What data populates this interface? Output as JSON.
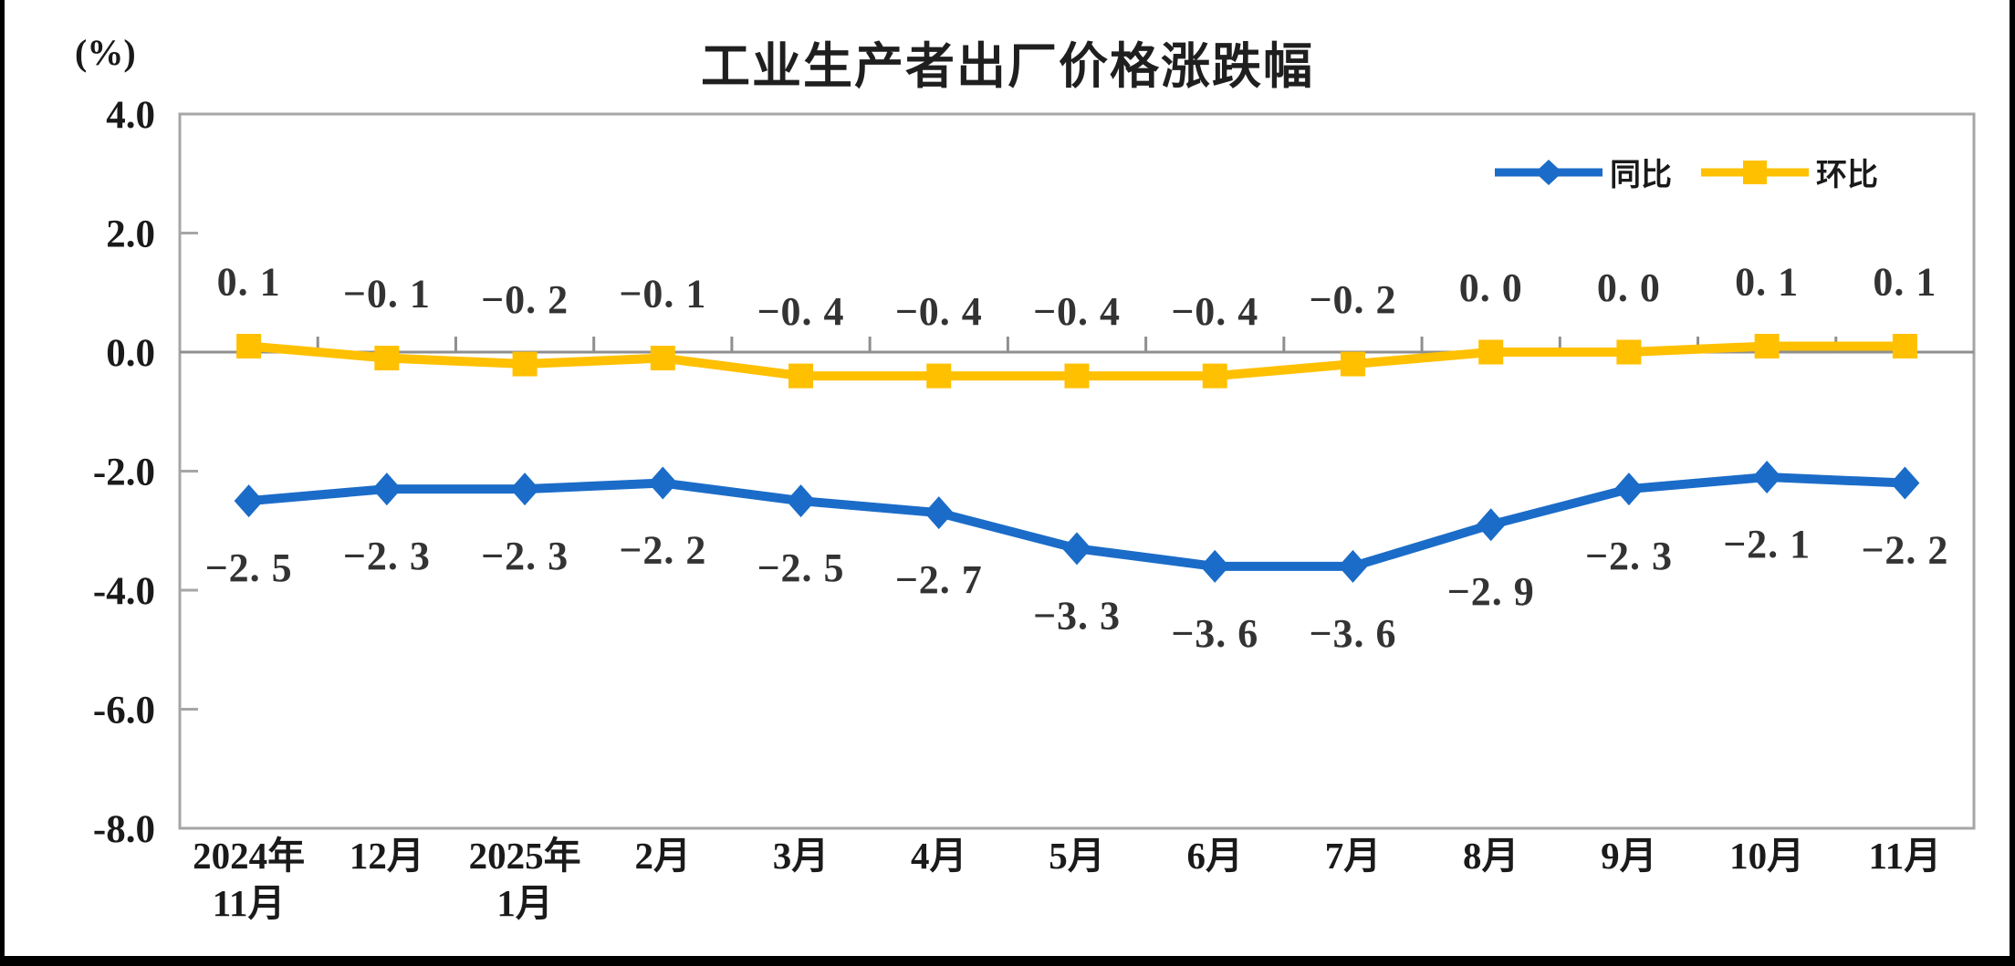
{
  "page": {
    "background": "#ffffff",
    "edge_bar_color": "#000000"
  },
  "chart_data": {
    "type": "line",
    "title": "工业生产者出厂价格涨跌幅",
    "unit_label": "(%)",
    "categories": [
      [
        "2024年",
        "11月"
      ],
      [
        "12月"
      ],
      [
        "2025年",
        "1月"
      ],
      [
        "2月"
      ],
      [
        "3月"
      ],
      [
        "4月"
      ],
      [
        "5月"
      ],
      [
        "6月"
      ],
      [
        "7月"
      ],
      [
        "8月"
      ],
      [
        "9月"
      ],
      [
        "10月"
      ],
      [
        "11月"
      ]
    ],
    "y_ticks": [
      "4.0",
      "2.0",
      "0.0",
      "-2.0",
      "-4.0",
      "-6.0",
      "-8.0"
    ],
    "ylim": [
      -8,
      4
    ],
    "grid": {
      "zero_line": true,
      "plot_border": true,
      "horizontal_gridlines": false
    },
    "legend_position": "top-right",
    "series": [
      {
        "name": "同比",
        "marker": "diamond",
        "color": "#1B6CC8",
        "label_position": "below",
        "values": [
          -2.5,
          -2.3,
          -2.3,
          -2.2,
          -2.5,
          -2.7,
          -3.3,
          -3.6,
          -3.6,
          -2.9,
          -2.3,
          -2.1,
          -2.2
        ],
        "labels": [
          "−2. 5",
          "−2. 3",
          "−2. 3",
          "−2. 2",
          "−2. 5",
          "−2. 7",
          "−3. 3",
          "−3. 6",
          "−3. 6",
          "−2. 9",
          "−2. 3",
          "−2. 1",
          "−2. 2"
        ]
      },
      {
        "name": "环比",
        "marker": "square",
        "color": "#FFC000",
        "label_position": "above",
        "values": [
          0.1,
          -0.1,
          -0.2,
          -0.1,
          -0.4,
          -0.4,
          -0.4,
          -0.4,
          -0.2,
          0.0,
          0.0,
          0.1,
          0.1
        ],
        "labels": [
          "0. 1",
          "−0. 1",
          "−0. 2",
          "−0. 1",
          "−0. 4",
          "−0. 4",
          "−0. 4",
          "−0. 4",
          "−0. 2",
          "0. 0",
          "0. 0",
          "0. 1",
          "0. 1"
        ]
      }
    ],
    "colors": {
      "plot_border": "#A6A6A6",
      "zero_line": "#8F8F8F",
      "axis_text": "#1a1a1a",
      "data_label_text": "#333333"
    }
  }
}
